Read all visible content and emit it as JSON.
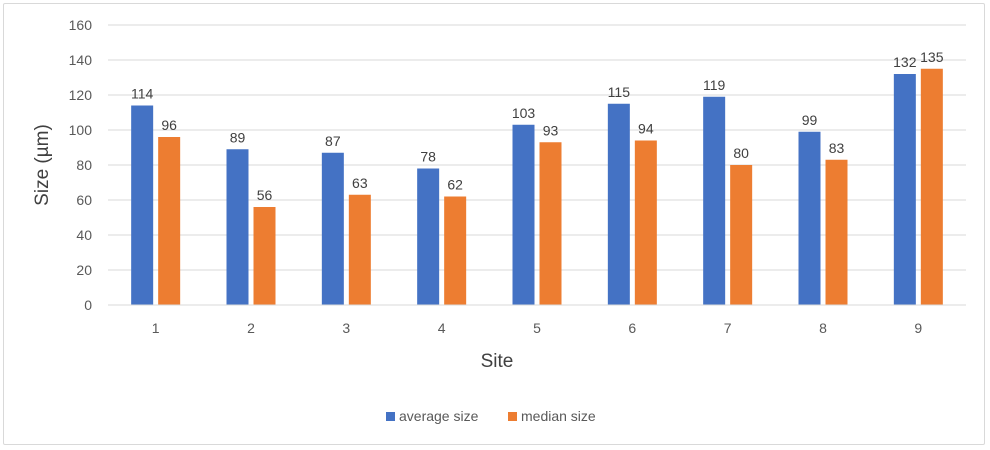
{
  "chart_data": {
    "type": "bar",
    "title": "",
    "xlabel": "Site",
    "ylabel": "Size (µm)",
    "categories": [
      "1",
      "2",
      "3",
      "4",
      "5",
      "6",
      "7",
      "8",
      "9"
    ],
    "series": [
      {
        "name": "average size",
        "color": "#4472C4",
        "values": [
          114,
          89,
          87,
          78,
          103,
          115,
          119,
          99,
          132
        ]
      },
      {
        "name": "median size",
        "color": "#ED7D31",
        "values": [
          96,
          56,
          63,
          62,
          93,
          94,
          80,
          83,
          135
        ]
      }
    ],
    "ylim": [
      0,
      160
    ],
    "yticks": [
      0,
      20,
      40,
      60,
      80,
      100,
      120,
      140,
      160
    ],
    "grid": true,
    "legend_position": "bottom",
    "data_labels": true
  }
}
